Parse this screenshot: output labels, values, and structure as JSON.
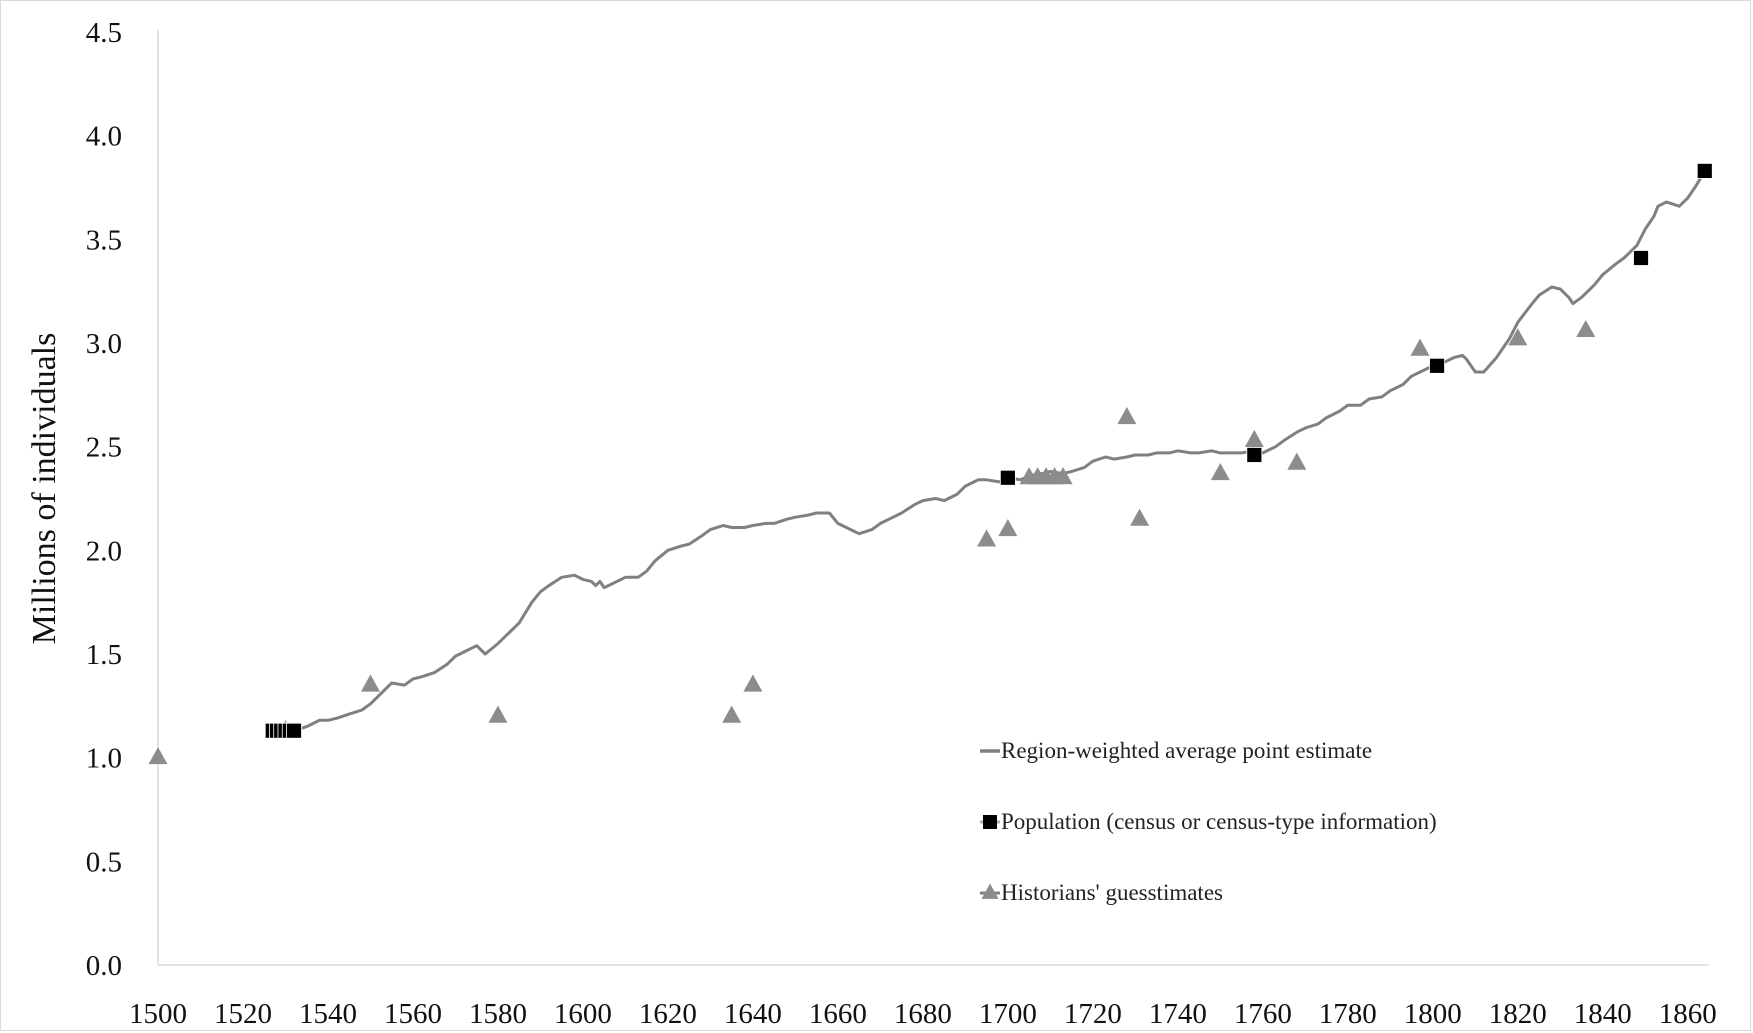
{
  "chart_data": {
    "type": "line",
    "title": "",
    "xlabel": "",
    "ylabel": "Millions of  individuals",
    "xlim": [
      1500,
      1865
    ],
    "ylim": [
      0,
      4.5
    ],
    "x_ticks": [
      "1500",
      "1520",
      "1540",
      "1560",
      "1580",
      "1600",
      "1620",
      "1640",
      "1660",
      "1680",
      "1700",
      "1720",
      "1740",
      "1760",
      "1780",
      "1800",
      "1820",
      "1840",
      "1860"
    ],
    "y_ticks": [
      "0.0",
      "0.5",
      "1.0",
      "1.5",
      "2.0",
      "2.5",
      "3.0",
      "3.5",
      "4.0",
      "4.5"
    ],
    "grid": false,
    "legend_position": "bottom-right",
    "colors": {
      "line": "#808080",
      "square": "#000000",
      "triangle": "#8c8c8c",
      "axis": "#d9d9d9"
    },
    "series": [
      {
        "name": "Region-weighted average point estimate",
        "kind": "line",
        "x": [
          1532,
          1535,
          1538,
          1540,
          1542,
          1545,
          1548,
          1550,
          1552,
          1555,
          1558,
          1560,
          1562,
          1565,
          1568,
          1570,
          1573,
          1575,
          1577,
          1580,
          1582,
          1585,
          1588,
          1590,
          1592,
          1595,
          1598,
          1600,
          1602,
          1603,
          1604,
          1605,
          1607,
          1610,
          1613,
          1615,
          1617,
          1620,
          1623,
          1625,
          1628,
          1630,
          1633,
          1635,
          1638,
          1640,
          1643,
          1645,
          1648,
          1650,
          1653,
          1655,
          1658,
          1660,
          1663,
          1665,
          1668,
          1670,
          1673,
          1675,
          1678,
          1680,
          1683,
          1685,
          1688,
          1690,
          1693,
          1695,
          1698,
          1700,
          1703,
          1705,
          1708,
          1710,
          1713,
          1715,
          1718,
          1720,
          1723,
          1725,
          1728,
          1730,
          1733,
          1735,
          1738,
          1740,
          1743,
          1745,
          1748,
          1750,
          1753,
          1755,
          1758,
          1760,
          1763,
          1765,
          1768,
          1770,
          1773,
          1775,
          1778,
          1780,
          1783,
          1785,
          1788,
          1790,
          1793,
          1795,
          1798,
          1800,
          1803,
          1805,
          1807,
          1808,
          1810,
          1812,
          1815,
          1818,
          1820,
          1823,
          1825,
          1828,
          1830,
          1832,
          1833,
          1835,
          1838,
          1840,
          1843,
          1845,
          1848,
          1850,
          1852,
          1853,
          1855,
          1858,
          1860,
          1862,
          1864
        ],
        "y": [
          1.13,
          1.15,
          1.18,
          1.18,
          1.19,
          1.21,
          1.23,
          1.26,
          1.3,
          1.36,
          1.35,
          1.38,
          1.39,
          1.41,
          1.45,
          1.49,
          1.52,
          1.54,
          1.5,
          1.55,
          1.59,
          1.65,
          1.75,
          1.8,
          1.83,
          1.87,
          1.88,
          1.86,
          1.85,
          1.83,
          1.85,
          1.82,
          1.84,
          1.87,
          1.87,
          1.9,
          1.95,
          2.0,
          2.02,
          2.03,
          2.07,
          2.1,
          2.12,
          2.11,
          2.11,
          2.12,
          2.13,
          2.13,
          2.15,
          2.16,
          2.17,
          2.18,
          2.18,
          2.13,
          2.1,
          2.08,
          2.1,
          2.13,
          2.16,
          2.18,
          2.22,
          2.24,
          2.25,
          2.24,
          2.27,
          2.31,
          2.34,
          2.34,
          2.33,
          2.35,
          2.34,
          2.36,
          2.37,
          2.38,
          2.37,
          2.38,
          2.4,
          2.43,
          2.45,
          2.44,
          2.45,
          2.46,
          2.46,
          2.47,
          2.47,
          2.48,
          2.47,
          2.47,
          2.48,
          2.47,
          2.47,
          2.47,
          2.48,
          2.47,
          2.5,
          2.53,
          2.57,
          2.59,
          2.61,
          2.64,
          2.67,
          2.7,
          2.7,
          2.73,
          2.74,
          2.77,
          2.8,
          2.84,
          2.87,
          2.89,
          2.91,
          2.93,
          2.94,
          2.92,
          2.86,
          2.86,
          2.93,
          3.02,
          3.1,
          3.18,
          3.23,
          3.27,
          3.26,
          3.22,
          3.19,
          3.22,
          3.28,
          3.33,
          3.38,
          3.41,
          3.47,
          3.55,
          3.61,
          3.66,
          3.68,
          3.66,
          3.7,
          3.76,
          3.83
        ]
      },
      {
        "name": "Population (census or census-type information)",
        "kind": "square",
        "x": [
          1527,
          1528,
          1529,
          1530,
          1531,
          1532,
          1700,
          1758,
          1801,
          1849,
          1864
        ],
        "y": [
          1.13,
          1.13,
          1.13,
          1.13,
          1.13,
          1.13,
          2.35,
          2.46,
          2.89,
          3.41,
          3.83
        ]
      },
      {
        "name": "Historians' guesstimates",
        "kind": "triangle",
        "x": [
          1500,
          1530,
          1550,
          1580,
          1635,
          1640,
          1695,
          1700,
          1705,
          1707,
          1709,
          1711,
          1713,
          1728,
          1731,
          1750,
          1758,
          1768,
          1797,
          1820,
          1836
        ],
        "y": [
          1.0,
          1.13,
          1.35,
          1.2,
          1.2,
          1.35,
          2.05,
          2.1,
          2.35,
          2.35,
          2.35,
          2.35,
          2.35,
          2.64,
          2.15,
          2.37,
          2.53,
          2.42,
          2.97,
          3.02,
          3.06
        ]
      }
    ]
  }
}
